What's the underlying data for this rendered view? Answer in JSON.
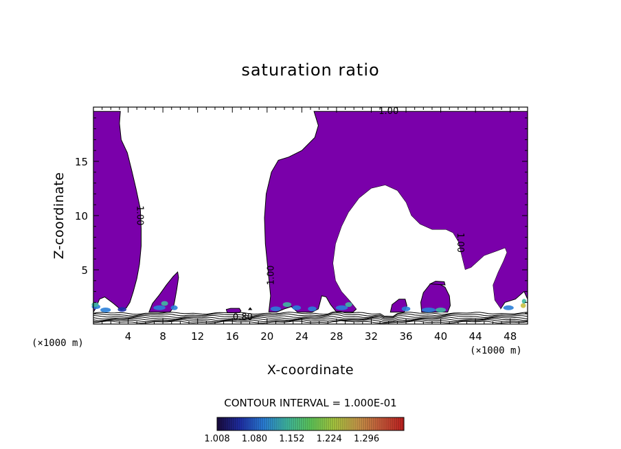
{
  "chart_data": {
    "type": "heatmap",
    "title": "saturation ratio",
    "xlabel": "X-coordinate",
    "ylabel": "Z-coordinate",
    "x_unit_label": "(×1000 m)",
    "x_unit_label_right": "(×1000 m)",
    "xlim": [
      0,
      50
    ],
    "ylim": [
      0,
      20
    ],
    "x_ticks": [
      4,
      8,
      12,
      16,
      20,
      24,
      28,
      32,
      36,
      40,
      44,
      48
    ],
    "y_ticks": [
      5,
      10,
      15
    ],
    "contour_labels": [
      {
        "text": "1.00",
        "x": 34.0,
        "z": 19.6
      },
      {
        "text": "1.00",
        "x": 5.3,
        "z": 10.0,
        "rotate": 90
      },
      {
        "text": "1.00",
        "x": 20.5,
        "z": 4.5,
        "rotate": -90
      },
      {
        "text": "1.00",
        "x": 42.2,
        "z": 7.5,
        "rotate": 90
      },
      {
        "text": "0.80",
        "x": 17.2,
        "z": 0.6
      }
    ],
    "contour_interval": "CONTOUR INTERVAL = 1.000E-01",
    "colorbar": {
      "min": 1.008,
      "max": 1.368,
      "tick_labels": [
        "1.008",
        "1.080",
        "1.152",
        "1.224",
        "1.296"
      ],
      "colors": [
        "#1a0a3c",
        "#1f2fa8",
        "#2a7fd8",
        "#3fb8a0",
        "#5ec85a",
        "#a8c840",
        "#c89a4a",
        "#c85a3a",
        "#c02020"
      ]
    },
    "fill_color": "#7a00aa",
    "supersaturated_regions": [
      {
        "name": "left-edge",
        "x": [
          0,
          4.7
        ],
        "z_top": 19.6
      },
      {
        "name": "small-plume",
        "x": [
          6.3,
          9.8
        ],
        "z_top": 4.8
      },
      {
        "name": "central-column",
        "x": [
          19.6,
          27.0
        ],
        "z_top": 19.6
      },
      {
        "name": "upper-right-sheet",
        "x": [
          27.0,
          50
        ],
        "z_top": 19.6
      },
      {
        "name": "cap-40",
        "x": [
          37.8,
          41.0
        ],
        "z_top": 3.8
      },
      {
        "name": "small-puff-16",
        "x": [
          15.4,
          17.0
        ],
        "z_top": 1.4
      }
    ]
  }
}
